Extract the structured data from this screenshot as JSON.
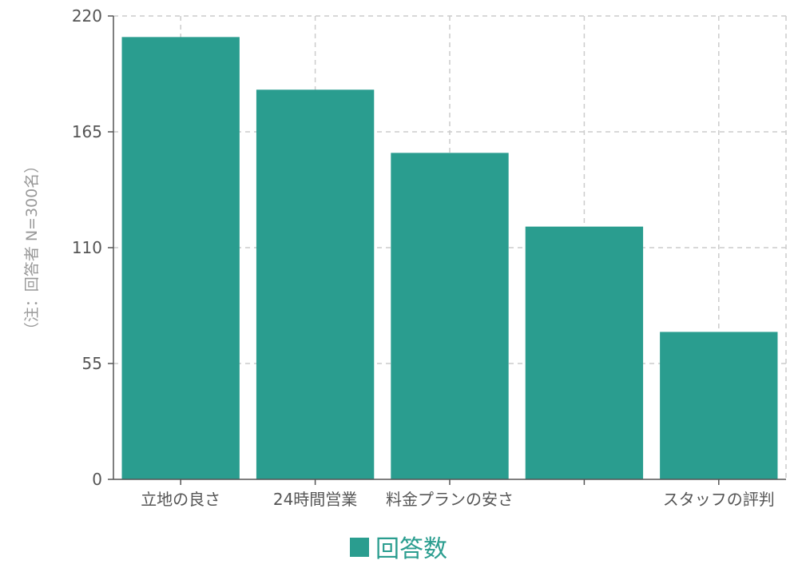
{
  "chart_data": {
    "type": "bar",
    "categories": [
      "立地の良さ",
      "24時間営業",
      "料金プランの安さ",
      "",
      "スタッフの評判"
    ],
    "series": [
      {
        "name": "回答数",
        "values": [
          210,
          185,
          155,
          120,
          70
        ]
      }
    ],
    "ylabel": "（注：回答者 N=300名）",
    "ylim": [
      0,
      220
    ],
    "yticks": [
      0,
      55,
      110,
      165,
      220
    ],
    "grid": true,
    "legend_position": "bottom-center",
    "colors": {
      "bar": "#2a9d8f",
      "legend_text": "#2a9d8f",
      "axis": "#555555",
      "grid": "#cccccc"
    }
  }
}
